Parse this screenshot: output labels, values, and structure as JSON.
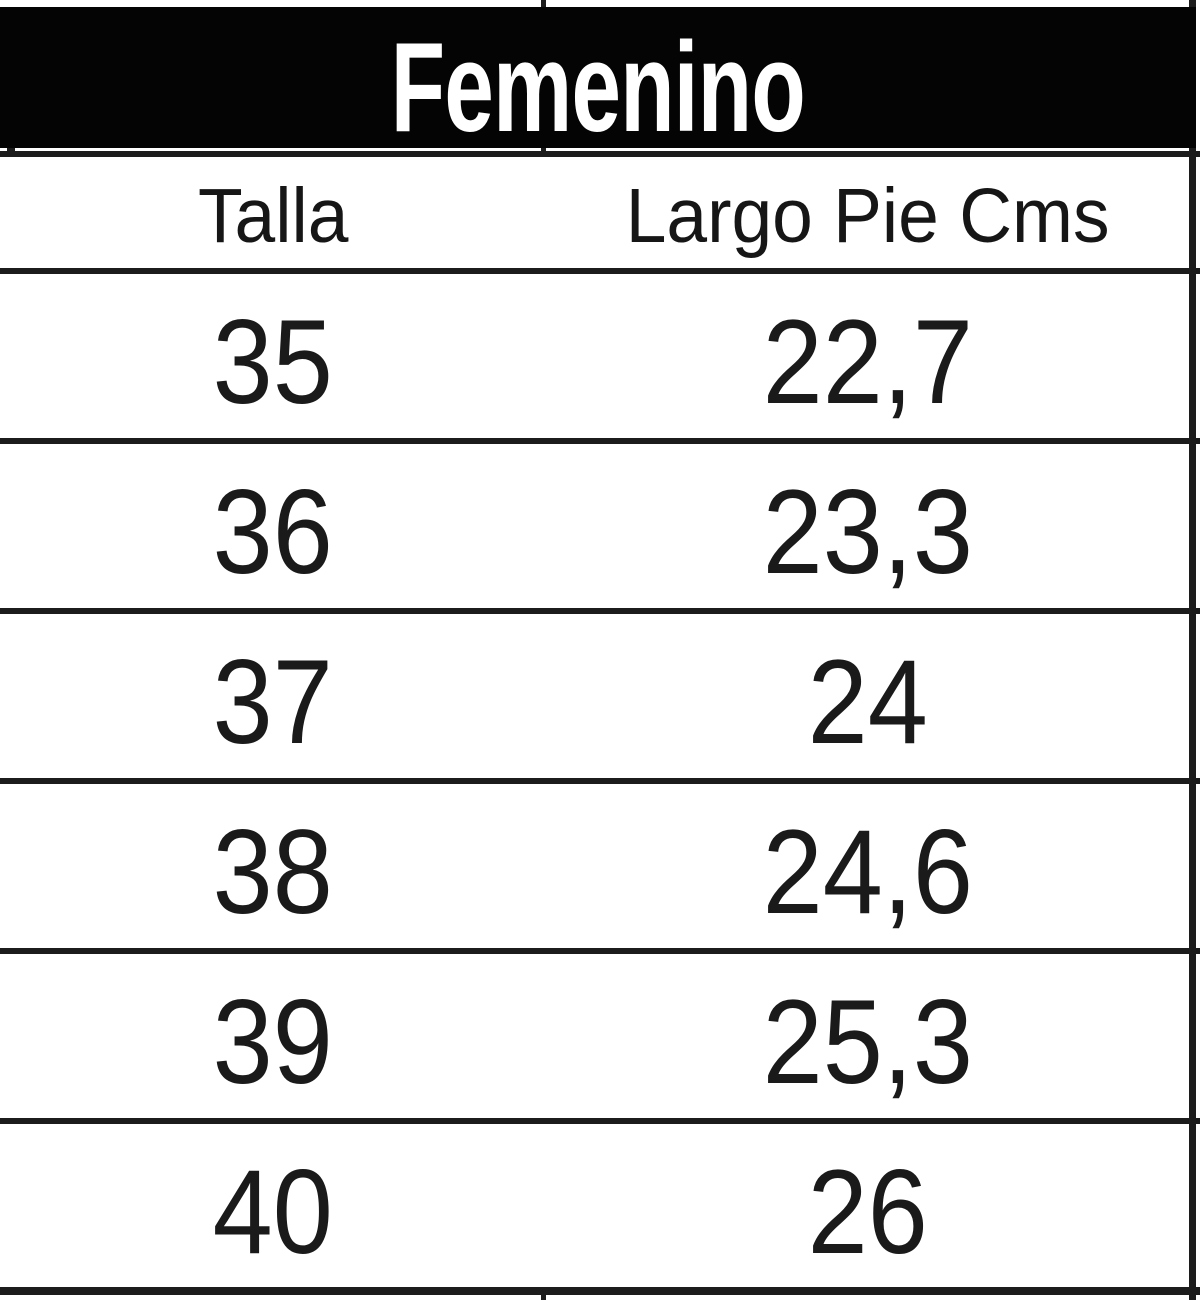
{
  "table": {
    "title": "Femenino",
    "header": {
      "col1": "Talla",
      "col2": "Largo Pie Cms"
    },
    "rows": [
      {
        "talla": "35",
        "largo_pie_cms": "22,7"
      },
      {
        "talla": "36",
        "largo_pie_cms": "23,3"
      },
      {
        "talla": "37",
        "largo_pie_cms": "24"
      },
      {
        "talla": "38",
        "largo_pie_cms": "24,6"
      },
      {
        "talla": "39",
        "largo_pie_cms": "25,3"
      },
      {
        "talla": "40",
        "largo_pie_cms": "26"
      }
    ]
  },
  "chart_data": {
    "type": "table",
    "title": "Femenino",
    "columns": [
      "Talla",
      "Largo Pie Cms"
    ],
    "rows": [
      [
        "35",
        "22,7"
      ],
      [
        "36",
        "23,3"
      ],
      [
        "37",
        "24"
      ],
      [
        "38",
        "24,6"
      ],
      [
        "39",
        "25,3"
      ],
      [
        "40",
        "26"
      ]
    ]
  },
  "colors": {
    "band_background": "#040404",
    "band_text": "#ffffff",
    "grid_line": "#1c1c1c",
    "cell_text": "#1a1a1a",
    "page_background": "#ffffff"
  }
}
